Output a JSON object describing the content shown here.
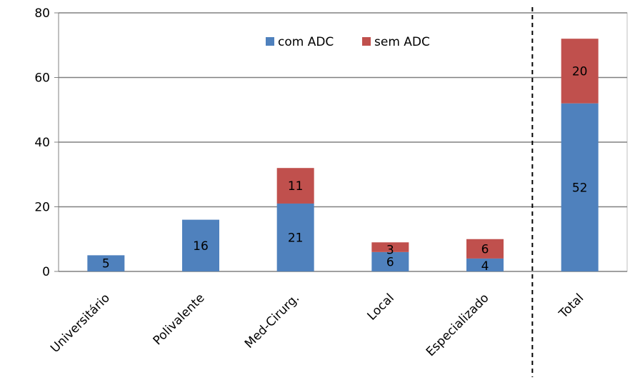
{
  "chart_data": {
    "type": "bar",
    "stacked": true,
    "categories": [
      "Universitário",
      "Polivalente",
      "Med-Cirurg.",
      "Local",
      "Especializado",
      "Total"
    ],
    "series": [
      {
        "name": "com ADC",
        "values": [
          5,
          16,
          21,
          6,
          4,
          52
        ],
        "color": "#4F81BD"
      },
      {
        "name": "sem ADC",
        "values": [
          0,
          0,
          11,
          3,
          6,
          20
        ],
        "color": "#C0504D"
      }
    ],
    "data_labels": [
      [
        "5",
        "16",
        "21",
        "6",
        "4",
        "52"
      ],
      [
        "",
        "",
        "11",
        "3",
        "6",
        "20"
      ]
    ],
    "ylim": [
      0,
      80
    ],
    "yticks": [
      0,
      20,
      40,
      60,
      80
    ],
    "grid": true,
    "legend": "top-center",
    "separator_before": "Total"
  }
}
